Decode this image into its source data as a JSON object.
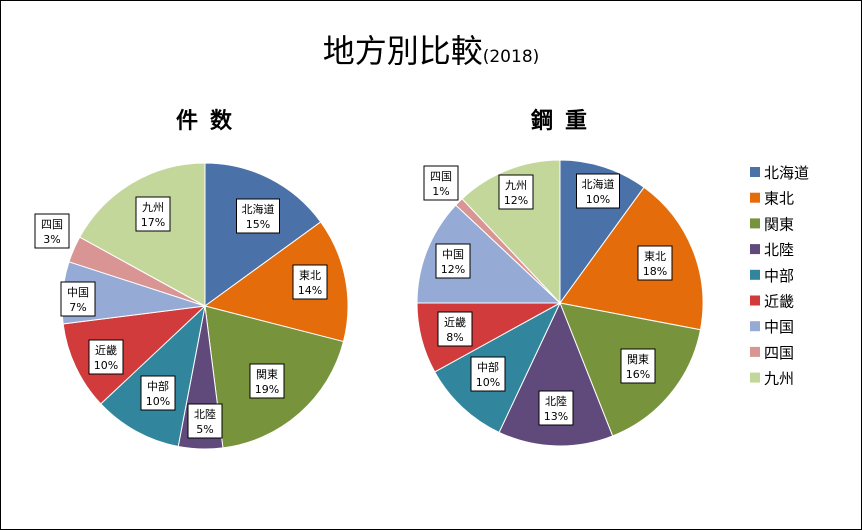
{
  "title": "地方別比較",
  "subtitle": "(2018)",
  "colors": {
    "北海道": "#4a72a8",
    "東北": "#e46c0a",
    "関東": "#77933c",
    "北陸": "#604a7b",
    "中部": "#31859c",
    "近畿": "#d13b3b",
    "中国": "#95aad4",
    "四国": "#d99594",
    "九州": "#c4d79b"
  },
  "chart_data": [
    {
      "type": "pie",
      "title": "件数",
      "categories": [
        "北海道",
        "東北",
        "関東",
        "北陸",
        "中部",
        "近畿",
        "中国",
        "四国",
        "九州"
      ],
      "values": [
        15,
        14,
        19,
        5,
        10,
        10,
        7,
        3,
        17
      ],
      "labels": [
        "15%",
        "14%",
        "19%",
        "5%",
        "10%",
        "10%",
        "7%",
        "3%",
        "17%"
      ]
    },
    {
      "type": "pie",
      "title": "鋼重",
      "categories": [
        "北海道",
        "東北",
        "関東",
        "北陸",
        "中部",
        "近畿",
        "中国",
        "四国",
        "九州"
      ],
      "values": [
        10,
        18,
        16,
        13,
        10,
        8,
        12,
        1,
        12
      ],
      "labels": [
        "10%",
        "18%",
        "16%",
        "13%",
        "10%",
        "8%",
        "12%",
        "1%",
        "12%"
      ]
    }
  ],
  "legend": [
    "北海道",
    "東北",
    "関東",
    "北陸",
    "中部",
    "近畿",
    "中国",
    "四国",
    "九州"
  ]
}
